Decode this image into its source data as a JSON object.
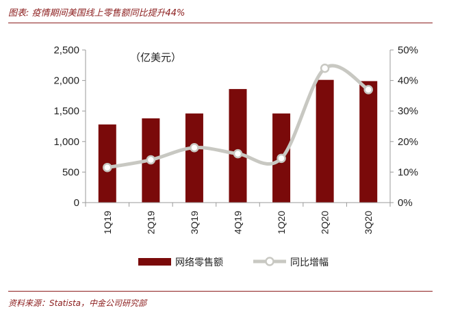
{
  "figure": {
    "title": "图表: 疫情期间美国线上零售额同比提升44%",
    "source": "资料来源：Statista，中金公司研究部"
  },
  "colors": {
    "accent": "#8b1c1c",
    "bar": "#7a0a0a",
    "line": "#c8c8c2",
    "axis": "#999999"
  },
  "chart_data": {
    "type": "bar",
    "title": "",
    "unit_label": "（亿美元）",
    "categories": [
      "1Q19",
      "2Q19",
      "3Q19",
      "4Q19",
      "1Q20",
      "2Q20",
      "3Q20"
    ],
    "series": [
      {
        "name": "网络零售额",
        "type": "bar",
        "axis": "left",
        "values": [
          1280,
          1380,
          1460,
          1860,
          1460,
          2010,
          1990
        ]
      },
      {
        "name": "同比增幅",
        "type": "line",
        "axis": "right",
        "values": [
          11.5,
          14,
          18,
          16,
          14.5,
          44,
          37
        ]
      }
    ],
    "y_left": {
      "range": [
        0,
        2500
      ],
      "ticks": [
        "0",
        "500",
        "1,000",
        "1,500",
        "2,000",
        "2,500"
      ]
    },
    "y_right": {
      "range": [
        0,
        50
      ],
      "ticks": [
        "0%",
        "10%",
        "20%",
        "30%",
        "40%",
        "50%"
      ]
    },
    "legend_position": "bottom",
    "grid": false
  }
}
